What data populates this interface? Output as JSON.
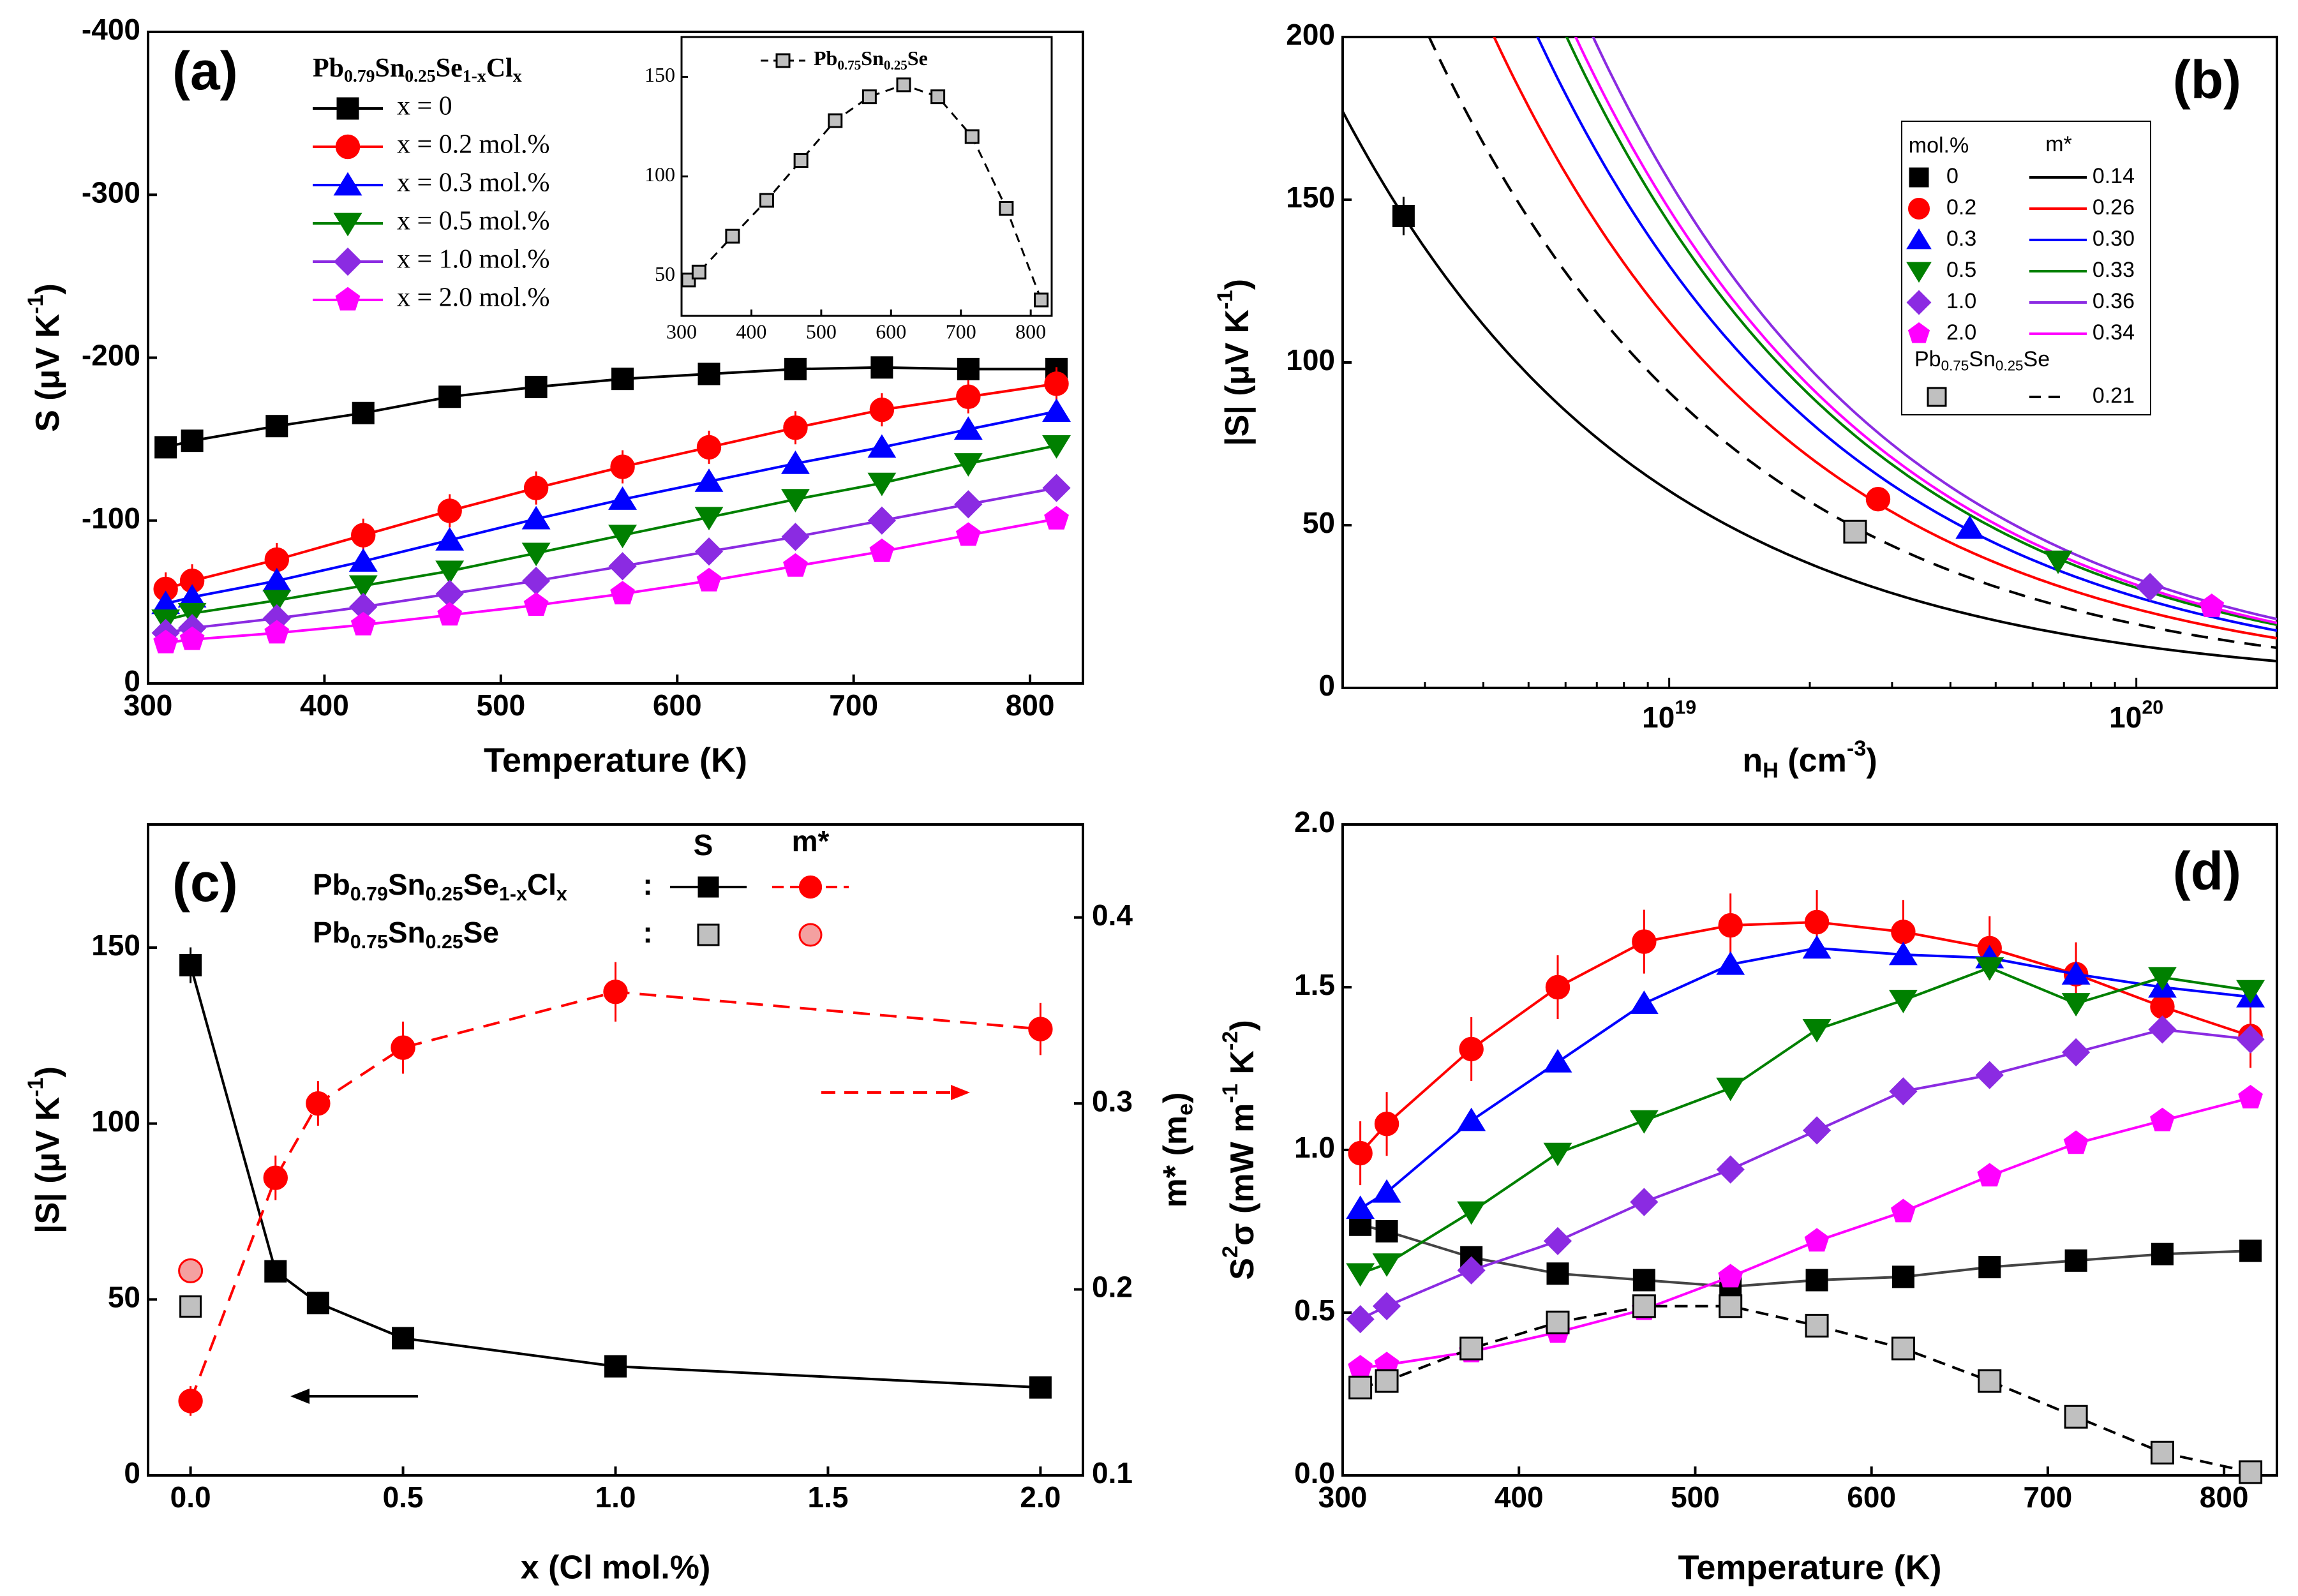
{
  "chart_data": [
    {
      "id": "a",
      "type": "line",
      "panel_label": "(a)",
      "xlabel": "Temperature (K)",
      "ylabel": "S (µV K⁻¹)",
      "xlim": [
        300,
        830
      ],
      "ylim": [
        0,
        -400
      ],
      "xticks": [
        300,
        400,
        500,
        600,
        700,
        800
      ],
      "yticks": [
        0,
        -100,
        -200,
        -300,
        -400
      ],
      "legend_title": "Pb0.79Sn0.25Se1-xClx",
      "x": [
        310,
        325,
        373,
        422,
        471,
        520,
        569,
        618,
        667,
        716,
        765,
        815
      ],
      "series": [
        {
          "name": "x = 0",
          "color": "#000000",
          "marker": "square",
          "values": [
            -145,
            -149,
            -158,
            -166,
            -176,
            -182,
            -187,
            -190,
            -193,
            -194,
            -193,
            -193
          ]
        },
        {
          "name": "x = 0.2 mol.%",
          "color": "#ff0000",
          "marker": "circle",
          "values": [
            -58,
            -63,
            -76,
            -91,
            -106,
            -120,
            -133,
            -145,
            -157,
            -168,
            -176,
            -184
          ]
        },
        {
          "name": "x = 0.3 mol.%",
          "color": "#0000ff",
          "marker": "triangle-up",
          "values": [
            -49,
            -53,
            -63,
            -75,
            -88,
            -101,
            -113,
            -124,
            -135,
            -145,
            -156,
            -167
          ]
        },
        {
          "name": "x = 0.5 mol.%",
          "color": "#008000",
          "marker": "triangle-down",
          "values": [
            -39,
            -43,
            -51,
            -60,
            -69,
            -80,
            -91,
            -102,
            -113,
            -123,
            -135,
            -146
          ]
        },
        {
          "name": "x = 1.0 mol.%",
          "color": "#8b2be2",
          "marker": "diamond",
          "values": [
            -31,
            -34,
            -40,
            -47,
            -55,
            -63,
            -72,
            -81,
            -90,
            -100,
            -110,
            -120
          ]
        },
        {
          "name": "x = 2.0 mol.%",
          "color": "#ff00ff",
          "marker": "pentagon",
          "values": [
            -25,
            -27,
            -31,
            -36,
            -42,
            -48,
            -55,
            -63,
            -72,
            -81,
            -91,
            -101
          ]
        }
      ],
      "inset": {
        "legend": "Pb0.75Sn0.25Se",
        "xlim": [
          300,
          830
        ],
        "ylim": [
          30,
          170
        ],
        "xticks": [
          300,
          400,
          500,
          600,
          700,
          800
        ],
        "yticks": [
          50,
          100,
          150
        ],
        "x": [
          310,
          325,
          373,
          422,
          471,
          520,
          569,
          618,
          667,
          716,
          765,
          815
        ],
        "values": [
          48,
          52,
          70,
          88,
          108,
          128,
          140,
          146,
          140,
          120,
          84,
          38
        ]
      }
    },
    {
      "id": "b",
      "type": "line",
      "panel_label": "(b)",
      "xlabel": "nH (cm⁻³)",
      "ylabel": "|S| (µV K⁻¹)",
      "xscale": "log",
      "xlim": [
        2e+18,
        2e+20
      ],
      "ylim": [
        0,
        200
      ],
      "yticks": [
        0,
        50,
        100,
        150,
        200
      ],
      "xtick_labels": [
        "10¹⁹",
        "10²⁰"
      ],
      "legend_headers": [
        "mol.%",
        "m*"
      ],
      "pisarenko_curves": [
        {
          "mol": "0",
          "m_eff": 0.14,
          "color": "#000000",
          "style": "solid"
        },
        {
          "mol": "0.2",
          "m_eff": 0.26,
          "color": "#ff0000",
          "style": "solid"
        },
        {
          "mol": "0.3",
          "m_eff": 0.3,
          "color": "#0000ff",
          "style": "solid"
        },
        {
          "mol": "0.5",
          "m_eff": 0.33,
          "color": "#008000",
          "style": "solid"
        },
        {
          "mol": "1.0",
          "m_eff": 0.36,
          "color": "#8b2be2",
          "style": "solid"
        },
        {
          "mol": "2.0",
          "m_eff": 0.34,
          "color": "#ff00ff",
          "style": "solid"
        },
        {
          "mol": "Pb0.75Sn0.25Se",
          "m_eff": 0.21,
          "color": "#000000",
          "style": "dashed"
        }
      ],
      "legend_m_labels": [
        "0.14",
        "0.26",
        "0.30",
        "0.33",
        "0.36",
        "0.34",
        "0.21"
      ],
      "legend_mol_labels": [
        "0",
        "0.2",
        "0.3",
        "0.5",
        "1.0",
        "2.0"
      ],
      "legend_extra": "Pb0.75Sn0.25Se",
      "points": [
        {
          "n": 2.7e+18,
          "S": 145,
          "color": "#000000",
          "marker": "square"
        },
        {
          "n": 2.8e+19,
          "S": 58,
          "color": "#ff0000",
          "marker": "circle"
        },
        {
          "n": 4.4e+19,
          "S": 49,
          "color": "#0000ff",
          "marker": "triangle-up"
        },
        {
          "n": 6.8e+19,
          "S": 39,
          "color": "#008000",
          "marker": "triangle-down"
        },
        {
          "n": 1.07e+20,
          "S": 31,
          "color": "#8b2be2",
          "marker": "diamond"
        },
        {
          "n": 1.45e+20,
          "S": 25,
          "color": "#ff00ff",
          "marker": "pentagon"
        },
        {
          "n": 2.5e+19,
          "S": 48,
          "color": "#c0c0c0",
          "marker": "square"
        }
      ]
    },
    {
      "id": "c",
      "type": "line",
      "panel_label": "(c)",
      "xlabel": "x (Cl mol.%)",
      "ylabel": "|S| (µV K⁻¹)",
      "ylabel_right": "m* (me)",
      "xlim": [
        -0.1,
        2.1
      ],
      "ylim": [
        0,
        185
      ],
      "ylim_right": [
        0.1,
        0.45
      ],
      "xticks": [
        0.0,
        0.5,
        1.0,
        1.5,
        2.0
      ],
      "xtick_labels": [
        "0.0",
        "0.5",
        "1.0",
        "1.5",
        "2.0"
      ],
      "yticks": [
        0,
        50,
        100,
        150
      ],
      "yticks_right": [
        0.1,
        0.2,
        0.3,
        0.4
      ],
      "ytick_right_labels": [
        "0.1",
        "0.2",
        "0.3",
        "0.4"
      ],
      "legend_row1": "Pb0.79Sn0.25Se1-xClx",
      "legend_row2": "Pb0.75Sn0.25Se",
      "legend_col_S": "S",
      "legend_col_m": "m*",
      "legend_colon": ":",
      "x": [
        0,
        0.2,
        0.3,
        0.5,
        1.0,
        2.0
      ],
      "S_values": [
        145,
        58,
        49,
        39,
        31,
        25
      ],
      "m_values": [
        0.14,
        0.26,
        0.3,
        0.33,
        0.36,
        0.34
      ],
      "m_errors": [
        0.008,
        0.012,
        0.012,
        0.014,
        0.016,
        0.014
      ],
      "reference": {
        "x": 0,
        "S": 48,
        "m": 0.21
      }
    },
    {
      "id": "d",
      "type": "line",
      "panel_label": "(d)",
      "xlabel": "Temperature (K)",
      "ylabel": "S²σ (mW m⁻¹ K⁻²)",
      "xlim": [
        300,
        830
      ],
      "ylim": [
        0,
        2.0
      ],
      "xticks": [
        300,
        400,
        500,
        600,
        700,
        800
      ],
      "yticks": [
        0.0,
        0.5,
        1.0,
        1.5,
        2.0
      ],
      "ytick_labels": [
        "0.0",
        "0.5",
        "1.0",
        "1.5",
        "2.0"
      ],
      "x": [
        310,
        325,
        373,
        422,
        471,
        520,
        569,
        618,
        667,
        716,
        765,
        815
      ],
      "series": [
        {
          "name": "x = 0",
          "color": "#000000",
          "marker": "square",
          "values": [
            0.77,
            0.75,
            0.67,
            0.62,
            0.6,
            0.58,
            0.6,
            0.61,
            0.64,
            0.66,
            0.68,
            0.69
          ]
        },
        {
          "name": "x = 0.2 mol.%",
          "color": "#ff0000",
          "marker": "circle",
          "values": [
            0.99,
            1.08,
            1.31,
            1.5,
            1.64,
            1.69,
            1.7,
            1.67,
            1.62,
            1.54,
            1.44,
            1.35
          ]
        },
        {
          "name": "x = 0.3 mol.%",
          "color": "#0000ff",
          "marker": "triangle-up",
          "values": [
            0.82,
            0.87,
            1.09,
            1.27,
            1.45,
            1.57,
            1.62,
            1.6,
            1.59,
            1.54,
            1.5,
            1.47
          ]
        },
        {
          "name": "x = 0.5 mol.%",
          "color": "#008000",
          "marker": "triangle-down",
          "values": [
            0.62,
            0.65,
            0.81,
            0.99,
            1.09,
            1.19,
            1.37,
            1.46,
            1.56,
            1.45,
            1.53,
            1.49
          ]
        },
        {
          "name": "x = 1.0 mol.%",
          "color": "#8b2be2",
          "marker": "diamond",
          "values": [
            0.48,
            0.52,
            0.63,
            0.72,
            0.84,
            0.94,
            1.06,
            1.18,
            1.23,
            1.3,
            1.37,
            1.34
          ]
        },
        {
          "name": "x = 2.0 mol.%",
          "color": "#ff00ff",
          "marker": "pentagon",
          "values": [
            0.33,
            0.34,
            0.38,
            0.44,
            0.51,
            0.61,
            0.72,
            0.81,
            0.92,
            1.02,
            1.09,
            1.16
          ]
        },
        {
          "name": "Pb0.75Sn0.25Se",
          "color": "#c0c0c0",
          "marker": "square",
          "dashed": true,
          "values": [
            0.27,
            0.29,
            0.39,
            0.47,
            0.52,
            0.52,
            0.46,
            0.39,
            0.29,
            0.18,
            0.07,
            0.01
          ]
        }
      ]
    }
  ]
}
